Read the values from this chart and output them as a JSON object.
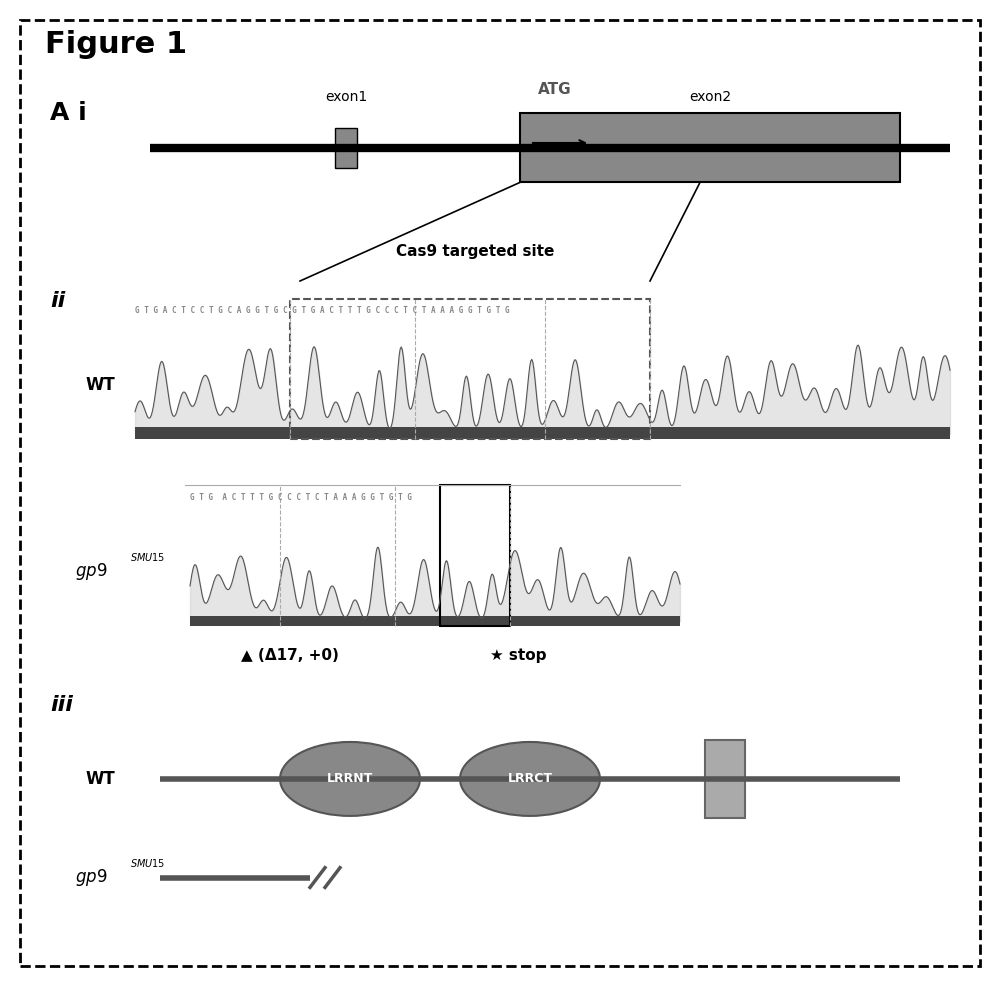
{
  "title": "Figure 1",
  "bg_color": "#ffffff",
  "border_color": "#000000",
  "panel_A_label": "A i",
  "panel_ii_label": "ii",
  "panel_iii_label": "iii",
  "exon1_label": "exon1",
  "exon2_label": "exon2",
  "atg_label": "ATG",
  "wt_label": "WT",
  "mut_label": "gp9",
  "mut_super": "SMU15",
  "cas9_label": "Cas9 targeted site",
  "wt_seq": "G T G A C T C C T G C A G G T G C G T G A C T T T G C C C T C T A A A G G T G T G",
  "mut_seq": "G T G  A C T T T G C C C T C T A A A G G T G T G",
  "delta_label": "▲ (Δ17, +0)",
  "stop_label": "★ stop",
  "lrrnt_label": "LRRNT",
  "lrrct_label": "LRRCT"
}
